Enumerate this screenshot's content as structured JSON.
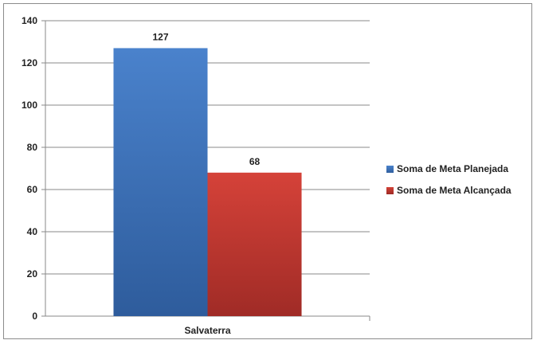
{
  "chart_data": {
    "type": "bar",
    "categories": [
      "Salvaterra"
    ],
    "series": [
      {
        "name": "Soma de Meta Planejada",
        "values": [
          127
        ],
        "color": "#3f76bf"
      },
      {
        "name": "Soma de Meta Alcançada",
        "values": [
          68
        ],
        "color": "#c8362f"
      }
    ],
    "title": "",
    "xlabel": "",
    "ylabel": "",
    "ylim": [
      0,
      140
    ],
    "yticks": [
      0,
      20,
      40,
      60,
      80,
      100,
      120,
      140
    ],
    "grid": true,
    "legend_position": "right"
  }
}
